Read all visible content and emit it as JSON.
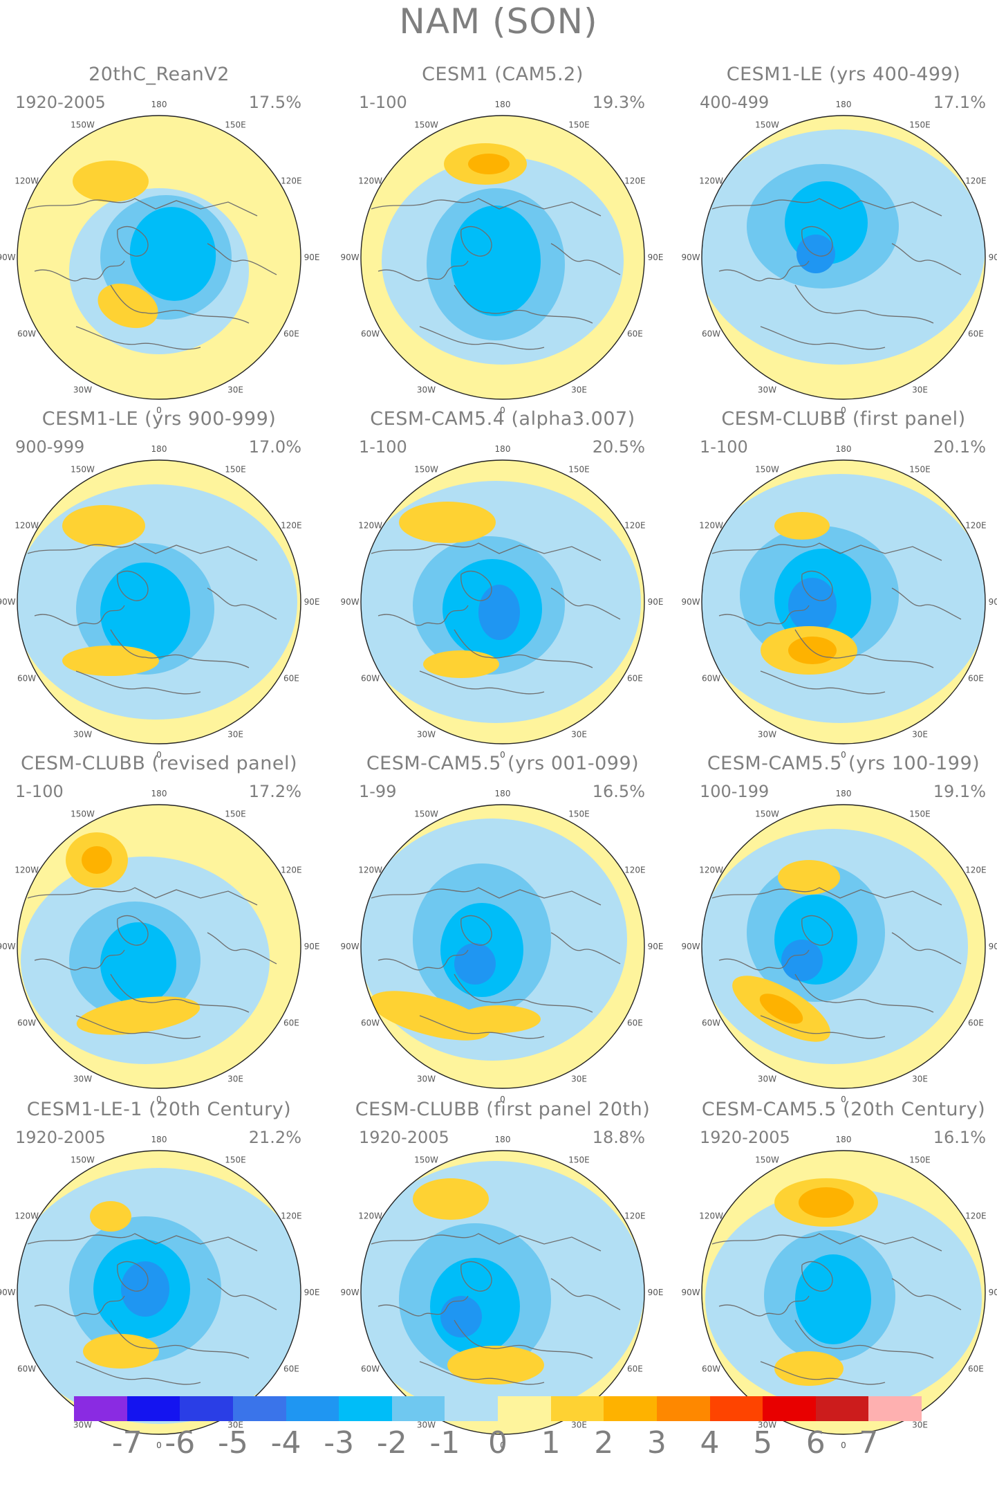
{
  "title": "NAM (SON)",
  "colors": {
    "land_outline": "#6e6e6e",
    "disk_outline": "#222222"
  },
  "lon_labels": [
    "180",
    "150E",
    "120E",
    "90E",
    "60E",
    "30E",
    "0",
    "30W",
    "60W",
    "90W",
    "120W",
    "150W"
  ],
  "panels": [
    {
      "title": "20thC_ReanV2",
      "period": "1920-2005",
      "pct": "17.5%"
    },
    {
      "title": "CESM1 (CAM5.2)",
      "period": "1-100",
      "pct": "19.3%"
    },
    {
      "title": "CESM1-LE (yrs 400-499)",
      "period": "400-499",
      "pct": "17.1%"
    },
    {
      "title": "CESM1-LE (yrs 900-999)",
      "period": "900-999",
      "pct": "17.0%"
    },
    {
      "title": "CESM-CAM5.4 (alpha3.007)",
      "period": "1-100",
      "pct": "20.5%"
    },
    {
      "title": "CESM-CLUBB (first panel)",
      "period": "1-100",
      "pct": "20.1%"
    },
    {
      "title": "CESM-CLUBB (revised panel)",
      "period": "1-100",
      "pct": "17.2%"
    },
    {
      "title": "CESM-CAM5.5 (yrs 001-099)",
      "period": "1-99",
      "pct": "16.5%"
    },
    {
      "title": "CESM-CAM5.5 (yrs 100-199)",
      "period": "100-199",
      "pct": "19.1%"
    },
    {
      "title": "CESM1-LE-1 (20th Century)",
      "period": "1920-2005",
      "pct": "21.2%"
    },
    {
      "title": "CESM-CLUBB (first panel 20th)",
      "period": "1920-2005",
      "pct": "18.8%"
    },
    {
      "title": "CESM-CAM5.5 (20th Century)",
      "period": "1920-2005",
      "pct": "16.1%"
    }
  ],
  "colorbar": {
    "colors": [
      "#8a2be2",
      "#1414f0",
      "#2a3ee6",
      "#3a74ea",
      "#1f96f2",
      "#00bdf8",
      "#6fc8f0",
      "#b2dff4",
      "#fef49c",
      "#fed233",
      "#feb200",
      "#fe8800",
      "#fe4400",
      "#e80000",
      "#cc1c1c",
      "#feb0b0"
    ],
    "labels": [
      "-7",
      "-6",
      "-5",
      "-4",
      "-3",
      "-2",
      "-1",
      "0",
      "1",
      "2",
      "3",
      "4",
      "5",
      "6",
      "7"
    ]
  }
}
